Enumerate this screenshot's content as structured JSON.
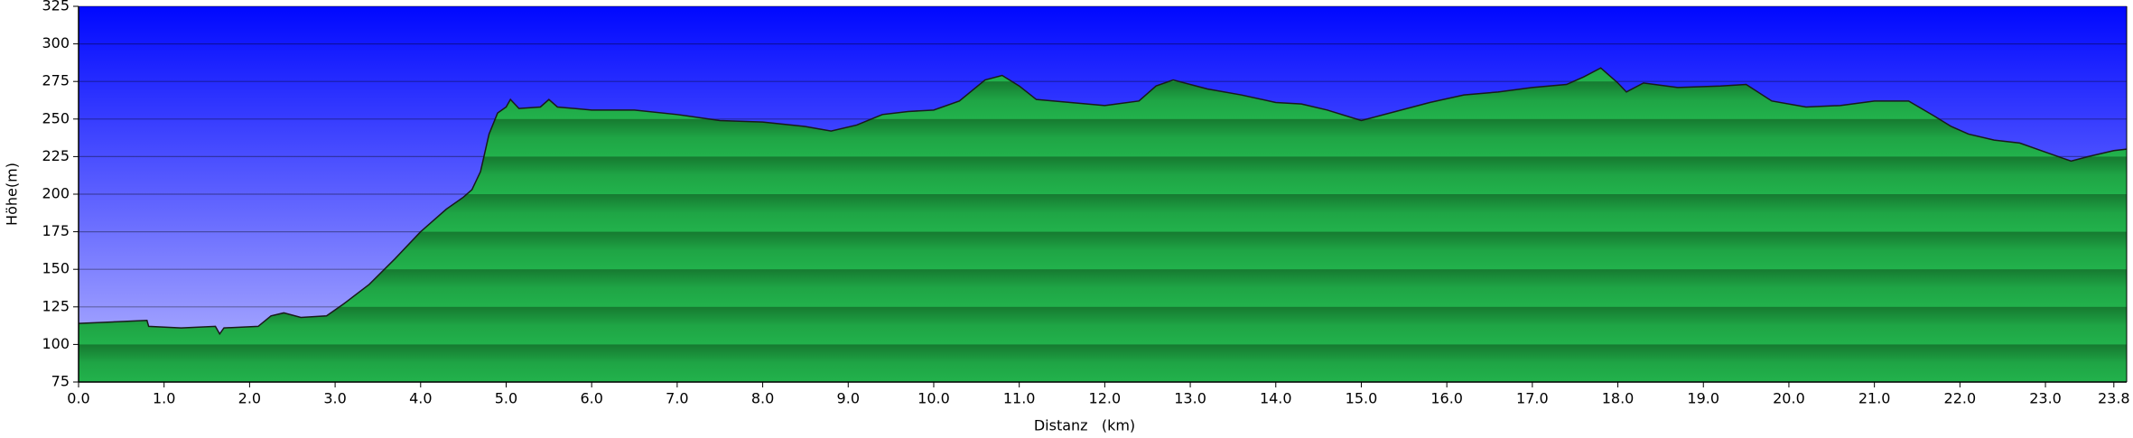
{
  "chart_data": {
    "type": "area",
    "ylabel": "Höhe(m)",
    "xlabel": "Distanz   (km)",
    "x": [
      0,
      0.4,
      0.8,
      0.82,
      1.2,
      1.6,
      1.65,
      1.7,
      2.1,
      2.25,
      2.4,
      2.6,
      2.9,
      3.1,
      3.4,
      3.7,
      4.0,
      4.3,
      4.5,
      4.6,
      4.7,
      4.8,
      4.9,
      5.0,
      5.05,
      5.15,
      5.4,
      5.5,
      5.6,
      6.0,
      6.5,
      7.0,
      7.5,
      8.0,
      8.5,
      8.8,
      9.1,
      9.4,
      9.7,
      10.0,
      10.3,
      10.6,
      10.8,
      11.0,
      11.2,
      11.6,
      12.0,
      12.4,
      12.6,
      12.8,
      13.2,
      13.6,
      14.0,
      14.3,
      14.6,
      15.0,
      15.4,
      15.8,
      16.2,
      16.6,
      17.0,
      17.4,
      17.6,
      17.8,
      18.0,
      18.1,
      18.3,
      18.7,
      19.2,
      19.5,
      19.8,
      20.2,
      20.6,
      21.0,
      21.4,
      21.7,
      21.9,
      22.1,
      22.4,
      22.7,
      23.0,
      23.3,
      23.5,
      23.8,
      23.95
    ],
    "values": [
      114,
      115,
      116,
      112,
      111,
      112,
      107,
      111,
      112,
      119,
      121,
      118,
      119,
      127,
      140,
      157,
      175,
      190,
      198,
      203,
      215,
      240,
      254,
      258,
      263,
      257,
      258,
      263,
      258,
      256,
      256,
      253,
      249,
      248,
      245,
      242,
      246,
      253,
      255,
      256,
      262,
      276,
      279,
      272,
      263,
      261,
      259,
      262,
      272,
      276,
      270,
      266,
      261,
      260,
      256,
      249,
      255,
      261,
      266,
      268,
      271,
      273,
      278,
      284,
      274,
      268,
      274,
      271,
      272,
      273,
      262,
      258,
      259,
      262,
      262,
      252,
      245,
      240,
      236,
      234,
      228,
      222,
      225,
      229,
      230
    ],
    "color": "#1fa545",
    "xlim": [
      0,
      23.95
    ],
    "ylim": [
      75,
      325
    ],
    "xticks": [
      {
        "value": 0,
        "label": "0.0"
      },
      {
        "value": 1,
        "label": "1.0"
      },
      {
        "value": 2,
        "label": "2.0"
      },
      {
        "value": 3,
        "label": "3.0"
      },
      {
        "value": 4,
        "label": "4.0"
      },
      {
        "value": 5,
        "label": "5.0"
      },
      {
        "value": 6,
        "label": "6.0"
      },
      {
        "value": 7,
        "label": "7.0"
      },
      {
        "value": 8,
        "label": "8.0"
      },
      {
        "value": 9,
        "label": "9.0"
      },
      {
        "value": 10,
        "label": "10.0"
      },
      {
        "value": 11,
        "label": "11.0"
      },
      {
        "value": 12,
        "label": "12.0"
      },
      {
        "value": 13,
        "label": "13.0"
      },
      {
        "value": 14,
        "label": "14.0"
      },
      {
        "value": 15,
        "label": "15.0"
      },
      {
        "value": 16,
        "label": "16.0"
      },
      {
        "value": 17,
        "label": "17.0"
      },
      {
        "value": 18,
        "label": "18.0"
      },
      {
        "value": 19,
        "label": "19.0"
      },
      {
        "value": 20,
        "label": "20.0"
      },
      {
        "value": 21,
        "label": "21.0"
      },
      {
        "value": 22,
        "label": "22.0"
      },
      {
        "value": 23,
        "label": "23.0"
      },
      23.8
    ],
    "yticks": [
      75,
      100,
      125,
      150,
      175,
      200,
      225,
      250,
      275,
      300,
      325
    ],
    "grid": true
  }
}
